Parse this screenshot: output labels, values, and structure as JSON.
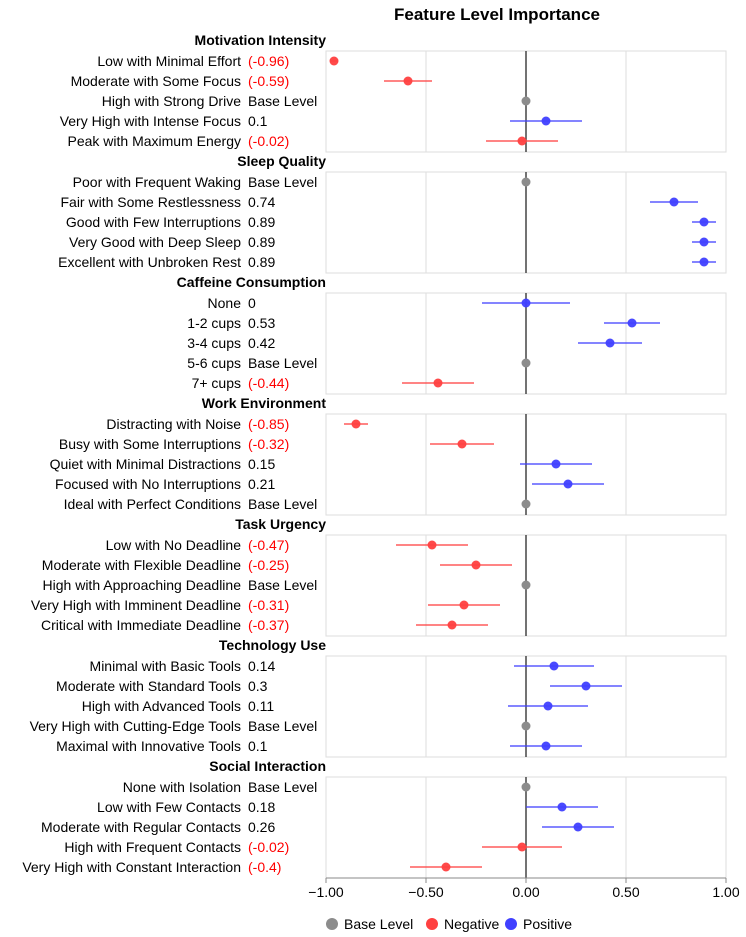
{
  "chart_data": {
    "type": "forest",
    "title": "Feature Level Importance",
    "xlim": [
      -1.0,
      1.0
    ],
    "x_ticks": [
      -1.0,
      -0.5,
      0.0,
      0.5,
      1.0
    ],
    "x_tick_labels": [
      "−1.00",
      "−0.50",
      "0.00",
      "0.50",
      "1.00"
    ],
    "colors": {
      "base": "#8c8c8c",
      "negative": "#ff4040",
      "positive": "#4040ff"
    },
    "legend": {
      "placement": "bottom",
      "items": [
        {
          "label": "Base Level",
          "kind": "base"
        },
        {
          "label": "Negative",
          "kind": "negative"
        },
        {
          "label": "Positive",
          "kind": "positive"
        }
      ]
    },
    "groups": [
      {
        "name": "Motivation Intensity",
        "levels": [
          {
            "label": "Low with Minimal Effort",
            "value": -0.96,
            "ci": [
              -0.98,
              -0.94
            ],
            "value_label": "(-0.96)",
            "kind": "negative"
          },
          {
            "label": "Moderate with Some Focus",
            "value": -0.59,
            "ci": [
              -0.71,
              -0.47
            ],
            "value_label": "(-0.59)",
            "kind": "negative"
          },
          {
            "label": "High with Strong Drive",
            "value": 0,
            "ci": null,
            "value_label": "Base Level",
            "kind": "base"
          },
          {
            "label": "Very High with Intense Focus",
            "value": 0.1,
            "ci": [
              -0.08,
              0.28
            ],
            "value_label": "0.1",
            "kind": "positive"
          },
          {
            "label": "Peak with Maximum Energy",
            "value": -0.02,
            "ci": [
              -0.2,
              0.16
            ],
            "value_label": "(-0.02)",
            "kind": "negative"
          }
        ]
      },
      {
        "name": "Sleep Quality",
        "levels": [
          {
            "label": "Poor with Frequent Waking",
            "value": 0,
            "ci": null,
            "value_label": "Base Level",
            "kind": "base"
          },
          {
            "label": "Fair with Some Restlessness",
            "value": 0.74,
            "ci": [
              0.62,
              0.86
            ],
            "value_label": "0.74",
            "kind": "positive"
          },
          {
            "label": "Good with Few Interruptions",
            "value": 0.89,
            "ci": [
              0.83,
              0.95
            ],
            "value_label": "0.89",
            "kind": "positive"
          },
          {
            "label": "Very Good with Deep Sleep",
            "value": 0.89,
            "ci": [
              0.83,
              0.95
            ],
            "value_label": "0.89",
            "kind": "positive"
          },
          {
            "label": "Excellent with Unbroken Rest",
            "value": 0.89,
            "ci": [
              0.83,
              0.95
            ],
            "value_label": "0.89",
            "kind": "positive"
          }
        ]
      },
      {
        "name": "Caffeine Consumption",
        "levels": [
          {
            "label": "None",
            "value": 0,
            "ci": [
              -0.22,
              0.22
            ],
            "value_label": "0",
            "kind": "positive"
          },
          {
            "label": "1-2 cups",
            "value": 0.53,
            "ci": [
              0.39,
              0.67
            ],
            "value_label": "0.53",
            "kind": "positive"
          },
          {
            "label": "3-4 cups",
            "value": 0.42,
            "ci": [
              0.26,
              0.58
            ],
            "value_label": "0.42",
            "kind": "positive"
          },
          {
            "label": "5-6 cups",
            "value": 0,
            "ci": null,
            "value_label": "Base Level",
            "kind": "base"
          },
          {
            "label": "7+ cups",
            "value": -0.44,
            "ci": [
              -0.62,
              -0.26
            ],
            "value_label": "(-0.44)",
            "kind": "negative"
          }
        ]
      },
      {
        "name": "Work Environment",
        "levels": [
          {
            "label": "Distracting with Noise",
            "value": -0.85,
            "ci": [
              -0.91,
              -0.79
            ],
            "value_label": "(-0.85)",
            "kind": "negative"
          },
          {
            "label": "Busy with Some Interruptions",
            "value": -0.32,
            "ci": [
              -0.48,
              -0.16
            ],
            "value_label": "(-0.32)",
            "kind": "negative"
          },
          {
            "label": "Quiet with Minimal Distractions",
            "value": 0.15,
            "ci": [
              -0.03,
              0.33
            ],
            "value_label": "0.15",
            "kind": "positive"
          },
          {
            "label": "Focused with No Interruptions",
            "value": 0.21,
            "ci": [
              0.03,
              0.39
            ],
            "value_label": "0.21",
            "kind": "positive"
          },
          {
            "label": "Ideal with Perfect Conditions",
            "value": 0,
            "ci": null,
            "value_label": "Base Level",
            "kind": "base"
          }
        ]
      },
      {
        "name": "Task Urgency",
        "levels": [
          {
            "label": "Low with No Deadline",
            "value": -0.47,
            "ci": [
              -0.65,
              -0.29
            ],
            "value_label": "(-0.47)",
            "kind": "negative"
          },
          {
            "label": "Moderate with Flexible Deadline",
            "value": -0.25,
            "ci": [
              -0.43,
              -0.07
            ],
            "value_label": "(-0.25)",
            "kind": "negative"
          },
          {
            "label": "High with Approaching Deadline",
            "value": 0,
            "ci": null,
            "value_label": "Base Level",
            "kind": "base"
          },
          {
            "label": "Very High with Imminent Deadline",
            "value": -0.31,
            "ci": [
              -0.49,
              -0.13
            ],
            "value_label": "(-0.31)",
            "kind": "negative"
          },
          {
            "label": "Critical with Immediate Deadline",
            "value": -0.37,
            "ci": [
              -0.55,
              -0.19
            ],
            "value_label": "(-0.37)",
            "kind": "negative"
          }
        ]
      },
      {
        "name": "Technology Use",
        "levels": [
          {
            "label": "Minimal with Basic Tools",
            "value": 0.14,
            "ci": [
              -0.06,
              0.34
            ],
            "value_label": "0.14",
            "kind": "positive"
          },
          {
            "label": "Moderate with Standard Tools",
            "value": 0.3,
            "ci": [
              0.12,
              0.48
            ],
            "value_label": "0.3",
            "kind": "positive"
          },
          {
            "label": "High with Advanced Tools",
            "value": 0.11,
            "ci": [
              -0.09,
              0.31
            ],
            "value_label": "0.11",
            "kind": "positive"
          },
          {
            "label": "Very High with Cutting-Edge Tools",
            "value": 0,
            "ci": null,
            "value_label": "Base Level",
            "kind": "base"
          },
          {
            "label": "Maximal with Innovative Tools",
            "value": 0.1,
            "ci": [
              -0.08,
              0.28
            ],
            "value_label": "0.1",
            "kind": "positive"
          }
        ]
      },
      {
        "name": "Social Interaction",
        "levels": [
          {
            "label": "None with Isolation",
            "value": 0,
            "ci": null,
            "value_label": "Base Level",
            "kind": "base"
          },
          {
            "label": "Low with Few Contacts",
            "value": 0.18,
            "ci": [
              0.0,
              0.36
            ],
            "value_label": "0.18",
            "kind": "positive"
          },
          {
            "label": "Moderate with Regular Contacts",
            "value": 0.26,
            "ci": [
              0.08,
              0.44
            ],
            "value_label": "0.26",
            "kind": "positive"
          },
          {
            "label": "High with Frequent Contacts",
            "value": -0.02,
            "ci": [
              -0.22,
              0.18
            ],
            "value_label": "(-0.02)",
            "kind": "negative"
          },
          {
            "label": "Very High with Constant Interaction",
            "value": -0.4,
            "ci": [
              -0.58,
              -0.22
            ],
            "value_label": "(-0.4)",
            "kind": "negative"
          }
        ]
      }
    ]
  }
}
